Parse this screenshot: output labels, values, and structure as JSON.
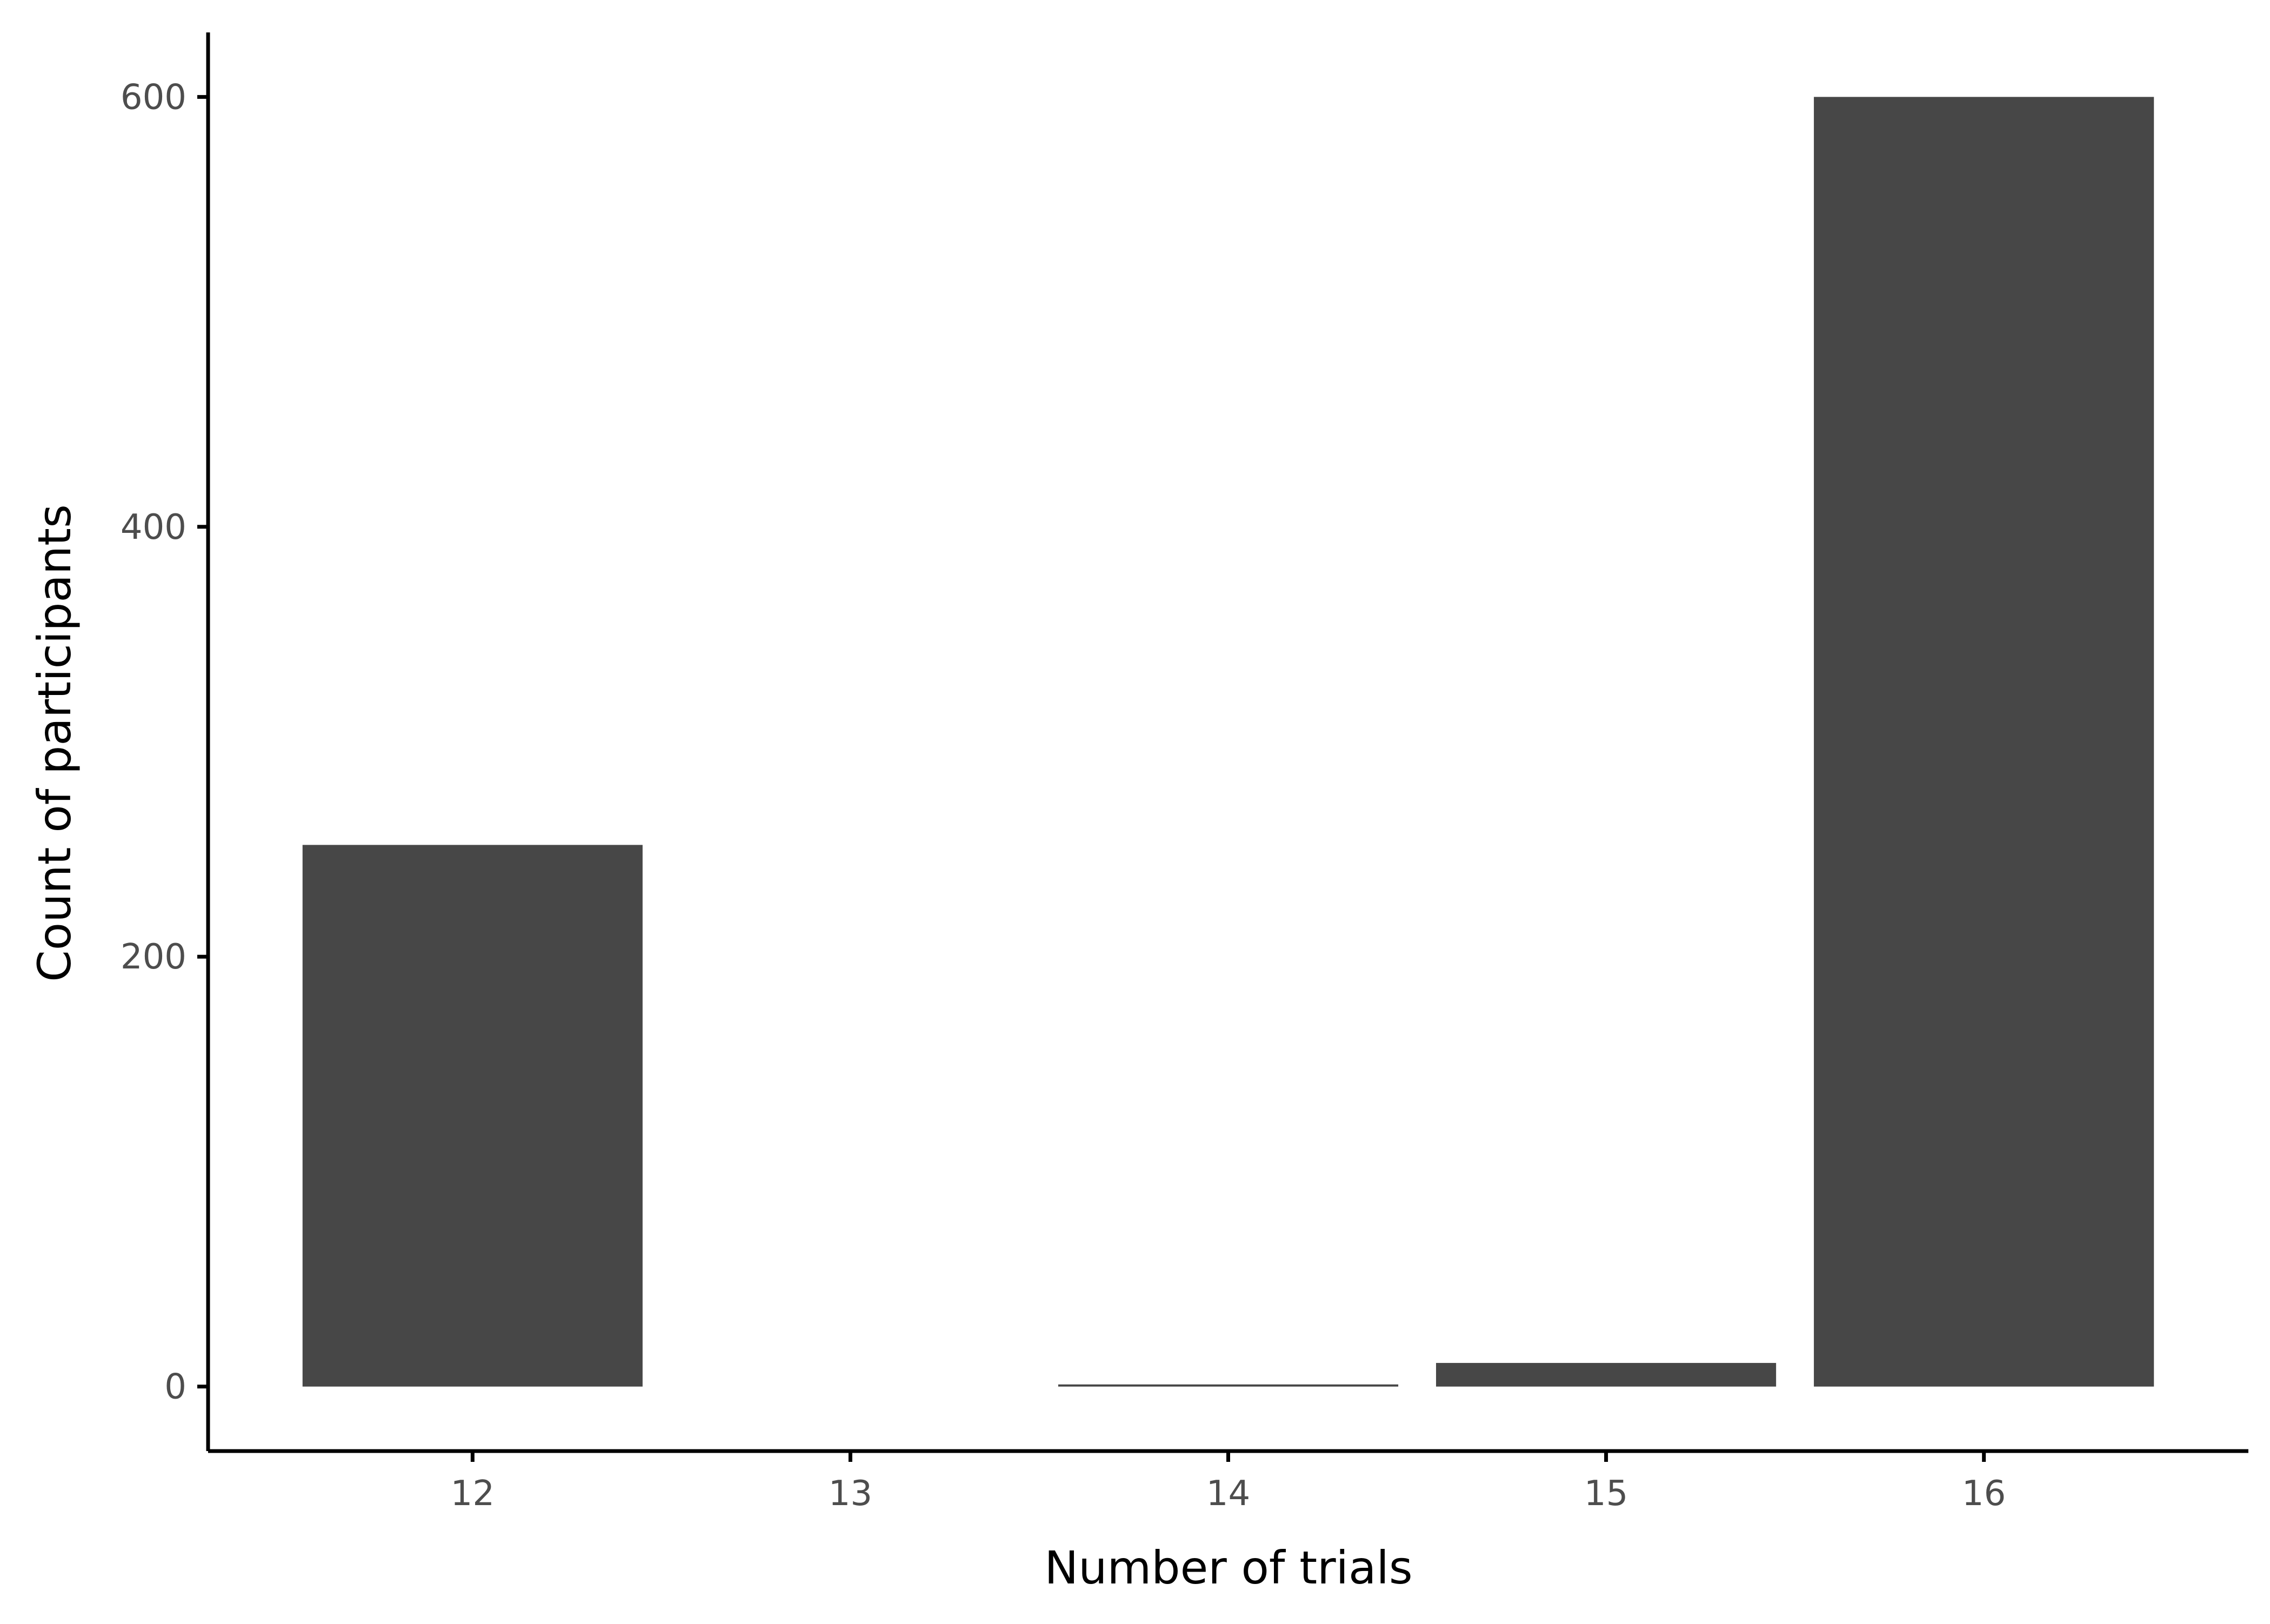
{
  "chart_data": {
    "type": "bar",
    "x": [
      12,
      13,
      14,
      15,
      16
    ],
    "values": [
      252,
      0,
      1,
      11,
      600
    ],
    "xlabel": "Number of trials",
    "ylabel": "Count of participants",
    "ylim": [
      -30,
      630
    ],
    "xlim": [
      11.3,
      16.7
    ],
    "yticks": [
      0,
      200,
      400,
      600
    ],
    "xticks": [
      12,
      13,
      14,
      15,
      16
    ],
    "bar_color": "#474747",
    "grid": false,
    "legend": "none"
  }
}
